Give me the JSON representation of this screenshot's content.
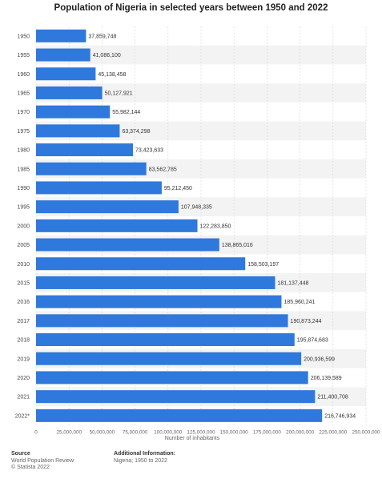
{
  "chart_data": {
    "type": "bar",
    "orientation": "horizontal",
    "title": "Population of Nigeria in selected years between 1950 and 2022",
    "xlabel": "Number of inhabitants",
    "ylabel": "",
    "xlim": [
      0,
      250000000
    ],
    "x_ticks": [
      0,
      25000000,
      50000000,
      75000000,
      100000000,
      125000000,
      150000000,
      175000000,
      200000000,
      225000000,
      250000000
    ],
    "x_tick_labels": [
      "0",
      "25,000,000",
      "50,000,000",
      "75,000,000",
      "100,000,000",
      "125,000,000",
      "150,000,000",
      "175,000,000",
      "200,000,000",
      "225,000,000",
      "250,000,000"
    ],
    "grid": true,
    "bar_color": "#2f78dc",
    "categories": [
      "1950",
      "1955",
      "1960",
      "1965",
      "1970",
      "1975",
      "1980",
      "1985",
      "1990",
      "1995",
      "2000",
      "2005",
      "2010",
      "2015",
      "2016",
      "2017",
      "2018",
      "2019",
      "2020",
      "2021",
      "2022*"
    ],
    "values": [
      37859748,
      41086100,
      45138458,
      50127921,
      55982144,
      63374298,
      73423633,
      83562785,
      95212450,
      107948335,
      122283850,
      138865016,
      158503197,
      181137448,
      185960241,
      190873244,
      195874683,
      200936599,
      206139589,
      211400708,
      216746934
    ],
    "data_labels": [
      "37,859,748",
      "41,086,100",
      "45,138,458",
      "50,127,921",
      "55,982,144",
      "63,374,298",
      "73,423,633",
      "83,562,785",
      "95,212,450",
      "107,948,335",
      "122,283,850",
      "138,865,016",
      "158,503,197",
      "181,137,448",
      "185,960,241",
      "190,873,244",
      "195,874,683",
      "200,936,599",
      "206,139,589",
      "211,400,708",
      "216,746,934"
    ]
  },
  "footer": {
    "source_heading": "Source",
    "source_line1": "World Population Review",
    "source_line2": "© Statista 2022",
    "info_heading": "Additional Information:",
    "info_line1": "Nigeria; 1950 to 2022"
  }
}
